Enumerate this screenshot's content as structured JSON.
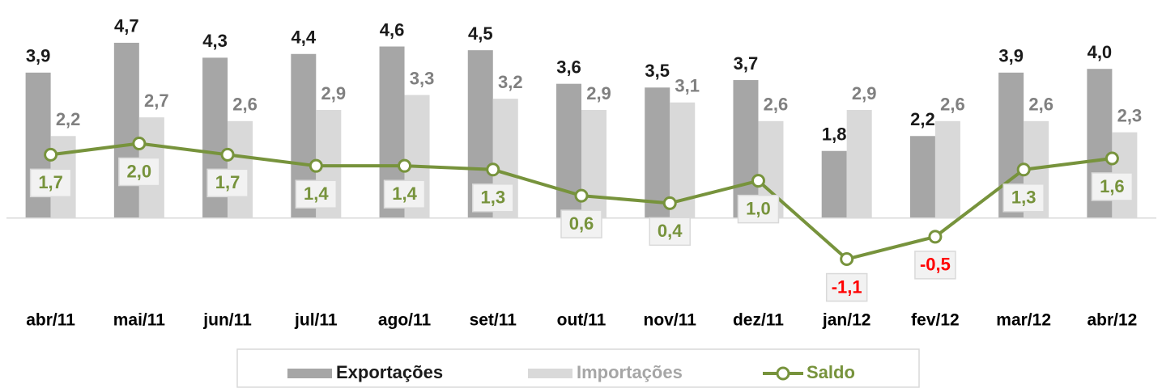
{
  "chart_data": {
    "type": "bar_line",
    "categories": [
      "abr/11",
      "mai/11",
      "jun/11",
      "jul/11",
      "ago/11",
      "set/11",
      "out/11",
      "nov/11",
      "dez/11",
      "jan/12",
      "fev/12",
      "mar/12",
      "abr/12"
    ],
    "ylim": [
      -1.5,
      5.5
    ],
    "series": [
      {
        "name": "Exportações",
        "type": "bar",
        "color": "#a6a6a6",
        "label_color": "#1a1a1a",
        "values": [
          3.9,
          4.7,
          4.3,
          4.4,
          4.6,
          4.5,
          3.6,
          3.5,
          3.7,
          1.8,
          2.2,
          3.9,
          4.0
        ],
        "value_labels": [
          "3,9",
          "4,7",
          "4,3",
          "4,4",
          "4,6",
          "4,5",
          "3,6",
          "3,5",
          "3,7",
          "1,8",
          "2,2",
          "3,9",
          "4,0"
        ]
      },
      {
        "name": "Importações",
        "type": "bar",
        "color": "#d9d9d9",
        "label_color": "#808080",
        "values": [
          2.2,
          2.7,
          2.6,
          2.9,
          3.3,
          3.2,
          2.9,
          3.1,
          2.6,
          2.9,
          2.6,
          2.6,
          2.3
        ],
        "value_labels": [
          "2,2",
          "2,7",
          "2,6",
          "2,9",
          "3,3",
          "3,2",
          "2,9",
          "3,1",
          "2,6",
          "2,9",
          "2,6",
          "2,6",
          "2,3"
        ]
      },
      {
        "name": "Saldo",
        "type": "line",
        "color": "#77933c",
        "label_color": "#77933c",
        "negative_label_color": "#ff0000",
        "values": [
          1.7,
          2.0,
          1.7,
          1.4,
          1.4,
          1.3,
          0.6,
          0.4,
          1.0,
          -1.1,
          -0.5,
          1.3,
          1.6
        ],
        "value_labels": [
          "1,7",
          "2,0",
          "1,7",
          "1,4",
          "1,4",
          "1,3",
          "0,6",
          "0,4",
          "1,0",
          "-1,1",
          "-0,5",
          "1,3",
          "1,6"
        ]
      }
    ],
    "legend": "bottom"
  }
}
